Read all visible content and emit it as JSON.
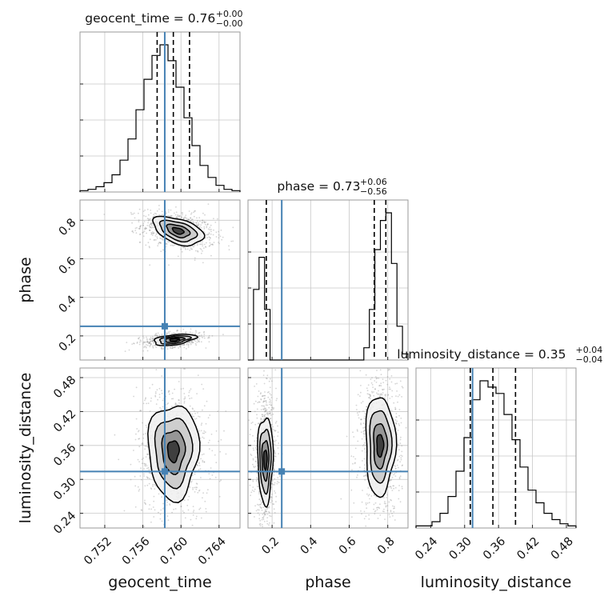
{
  "chart_data": {
    "type": "corner",
    "parameters": [
      "geocent_time",
      "phase",
      "luminosity_distance"
    ],
    "truths": {
      "geocent_time": 0.7583,
      "phase": 0.25,
      "luminosity_distance": 0.314
    },
    "truth_color": "#4682b4",
    "ranges": {
      "geocent_time": [
        0.7494,
        0.7662
      ],
      "phase": [
        0.075,
        0.905
      ],
      "luminosity_distance": [
        0.214,
        0.497
      ]
    },
    "ticks": {
      "geocent_time": [
        0.752,
        0.756,
        0.76,
        0.764
      ],
      "phase": [
        0.2,
        0.4,
        0.6,
        0.8
      ],
      "phase_y": [
        0.2,
        0.4,
        0.6,
        0.8
      ],
      "luminosity_distance": [
        0.24,
        0.3,
        0.36,
        0.42,
        0.48
      ]
    },
    "tick_labels": {
      "geocent_time": [
        "0.752",
        "0.756",
        "0.760",
        "0.764"
      ],
      "phase": [
        "0.2",
        "0.4",
        "0.6",
        "0.8"
      ],
      "luminosity_distance": [
        "0.24",
        "0.30",
        "0.36",
        "0.42",
        "0.48"
      ]
    },
    "marginal_titles": [
      {
        "param": "geocent_time",
        "main": "geocent_time = 0.76",
        "plus": "+0.00",
        "minus": "−0.00"
      },
      {
        "param": "phase",
        "main": "phase = 0.73",
        "plus": "+0.06",
        "minus": "−0.56"
      },
      {
        "param": "luminosity_distance",
        "main": "luminosity_distance = 0.35",
        "plus": "+0.04",
        "minus": "−0.04"
      }
    ],
    "quantiles": {
      "geocent_time": [
        0.7575,
        0.7592,
        0.7609
      ],
      "phase": [
        0.17,
        0.73,
        0.79
      ],
      "luminosity_distance": [
        0.31,
        0.35,
        0.39
      ]
    },
    "hist_1d": {
      "geocent_time": {
        "edges": [
          0.7494,
          0.7662
        ],
        "counts": [
          1,
          2,
          4,
          7,
          13,
          24,
          40,
          62,
          85,
          103,
          111,
          99,
          79,
          56,
          35,
          20,
          11,
          5,
          2,
          1
        ]
      },
      "phase": {
        "edges": [
          0.075,
          0.905
        ],
        "counts": [
          0,
          46,
          67,
          33,
          0,
          0,
          0,
          0,
          0,
          0,
          0,
          0,
          0,
          0,
          0,
          0,
          0,
          0,
          0,
          0,
          0,
          8,
          33,
          72,
          91,
          96,
          63,
          22,
          4
        ]
      },
      "luminosity_distance": {
        "edges": [
          0.214,
          0.497
        ],
        "counts": [
          1,
          1,
          3,
          7,
          15,
          27,
          43,
          61,
          70,
          67,
          64,
          54,
          42,
          29,
          18,
          12,
          7,
          4,
          2,
          1
        ]
      }
    },
    "contours_2d": [
      {
        "x": "geocent_time",
        "y": "phase",
        "clusters": [
          {
            "cx": 0.7597,
            "cy": 0.745,
            "sx": 0.0012,
            "sy": 0.03,
            "tilt": -0.0155
          },
          {
            "cx": 0.7593,
            "cy": 0.18,
            "sx": 0.001,
            "sy": 0.012,
            "tilt": 0.006
          }
        ]
      },
      {
        "x": "geocent_time",
        "y": "luminosity_distance",
        "clusters": [
          {
            "cx": 0.7592,
            "cy": 0.35,
            "sx": 0.0012,
            "sy": 0.038,
            "tilt": 0
          }
        ]
      },
      {
        "x": "phase",
        "y": "luminosity_distance",
        "clusters": [
          {
            "cx": 0.165,
            "cy": 0.335,
            "sx": 0.018,
            "sy": 0.035,
            "tilt": 0
          },
          {
            "cx": 0.76,
            "cy": 0.36,
            "sx": 0.035,
            "sy": 0.04,
            "tilt": 0
          }
        ]
      }
    ],
    "grid": true
  }
}
